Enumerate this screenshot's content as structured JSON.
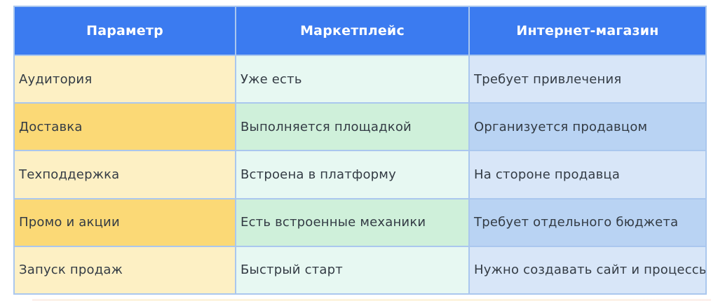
{
  "colors": {
    "header_bg": "#3b7bf0",
    "header_text": "#ffffff",
    "header_border": "#b7d2f8",
    "border": "#aac7ee",
    "body_text": "#333b44",
    "param_light": "#fdf0c4",
    "param_dark": "#fbd976",
    "mp_light": "#e7f8f2",
    "mp_dark": "#cff0da",
    "shop_light": "#d8e6f8",
    "shop_dark": "#b9d3f3"
  },
  "table": {
    "header": {
      "columns": [
        "Параметр",
        "Маркетплейс",
        "Интернет-магазин"
      ]
    },
    "rows": [
      {
        "cells": [
          "Аудитория",
          "Уже есть",
          "Требует привлечения"
        ]
      },
      {
        "cells": [
          "Доставка",
          "Выполняется площадкой",
          "Организуется продавцом"
        ]
      },
      {
        "cells": [
          "Техподдержка",
          "Встроена в платформу",
          "На стороне продавца"
        ]
      },
      {
        "cells": [
          "Промо и акции",
          "Есть встроенные механики",
          "Требует отдельного бюджета"
        ]
      },
      {
        "cells": [
          "Запуск продаж",
          "Быстрый старт",
          "Нужно создавать сайт и процессы"
        ]
      }
    ]
  },
  "chart_data": {
    "type": "table",
    "title": "",
    "columns": [
      "Параметр",
      "Маркетплейс",
      "Интернет-магазин"
    ],
    "rows": [
      [
        "Аудитория",
        "Уже есть",
        "Требует привлечения"
      ],
      [
        "Доставка",
        "Выполняется площадкой",
        "Организуется продавцом"
      ],
      [
        "Техподдержка",
        "Встроена в платформу",
        "На стороне продавца"
      ],
      [
        "Промо и акции",
        "Есть встроенные механики",
        "Требует отдельного бюджета"
      ],
      [
        "Запуск продаж",
        "Быстрый старт",
        "Нужно создавать сайт и процессы"
      ]
    ],
    "layout_hints": {
      "header_style": "blue background, white bold centered text",
      "column_tints": [
        "yellow/cream alternating",
        "mint green alternating",
        "light blue alternating"
      ],
      "grid": "on, light blue 2px borders"
    }
  }
}
